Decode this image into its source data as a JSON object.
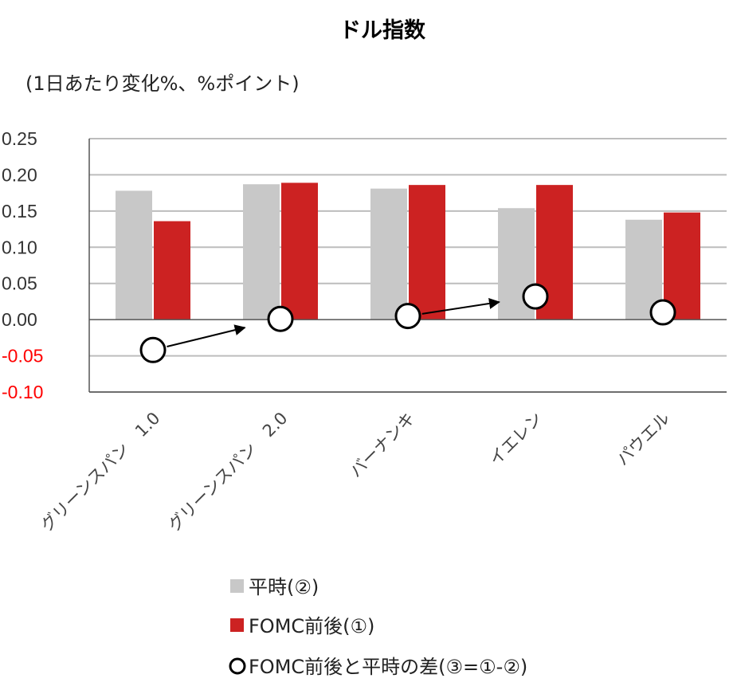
{
  "chart_data": {
    "type": "bar",
    "title": "ドル指数",
    "subtitle": "(1日あたり変化%、%ポイント)",
    "categories": [
      "グリーンスパン　1.0",
      "グリーンスパン　2.0",
      "バーナンキ",
      "イエレン",
      "パウエル"
    ],
    "series": [
      {
        "name": "平時(②)",
        "type": "bar",
        "color": "#c8c8c8",
        "values": [
          0.178,
          0.187,
          0.181,
          0.154,
          0.138
        ]
      },
      {
        "name": "FOMC前後(①)",
        "type": "bar",
        "color": "#cc2222",
        "values": [
          0.136,
          0.189,
          0.186,
          0.186,
          0.148
        ]
      },
      {
        "name": "FOMC前後と平時の差(③=①-②)",
        "type": "marker",
        "color": "#000000",
        "values": [
          -0.042,
          0.001,
          0.005,
          0.032,
          0.01
        ]
      }
    ],
    "arrows": [
      {
        "from": 0,
        "to": 1
      },
      {
        "from": 2,
        "to": 3
      }
    ],
    "yticks": [
      "0.25",
      "0.20",
      "0.15",
      "0.10",
      "0.05",
      "0.00",
      "-0.05",
      "-0.10"
    ],
    "ylim": [
      -0.1,
      0.25
    ],
    "negative_tick_color": "#ff0000",
    "positive_tick_color": "#333333",
    "grid": true,
    "legend_position": "bottom"
  }
}
